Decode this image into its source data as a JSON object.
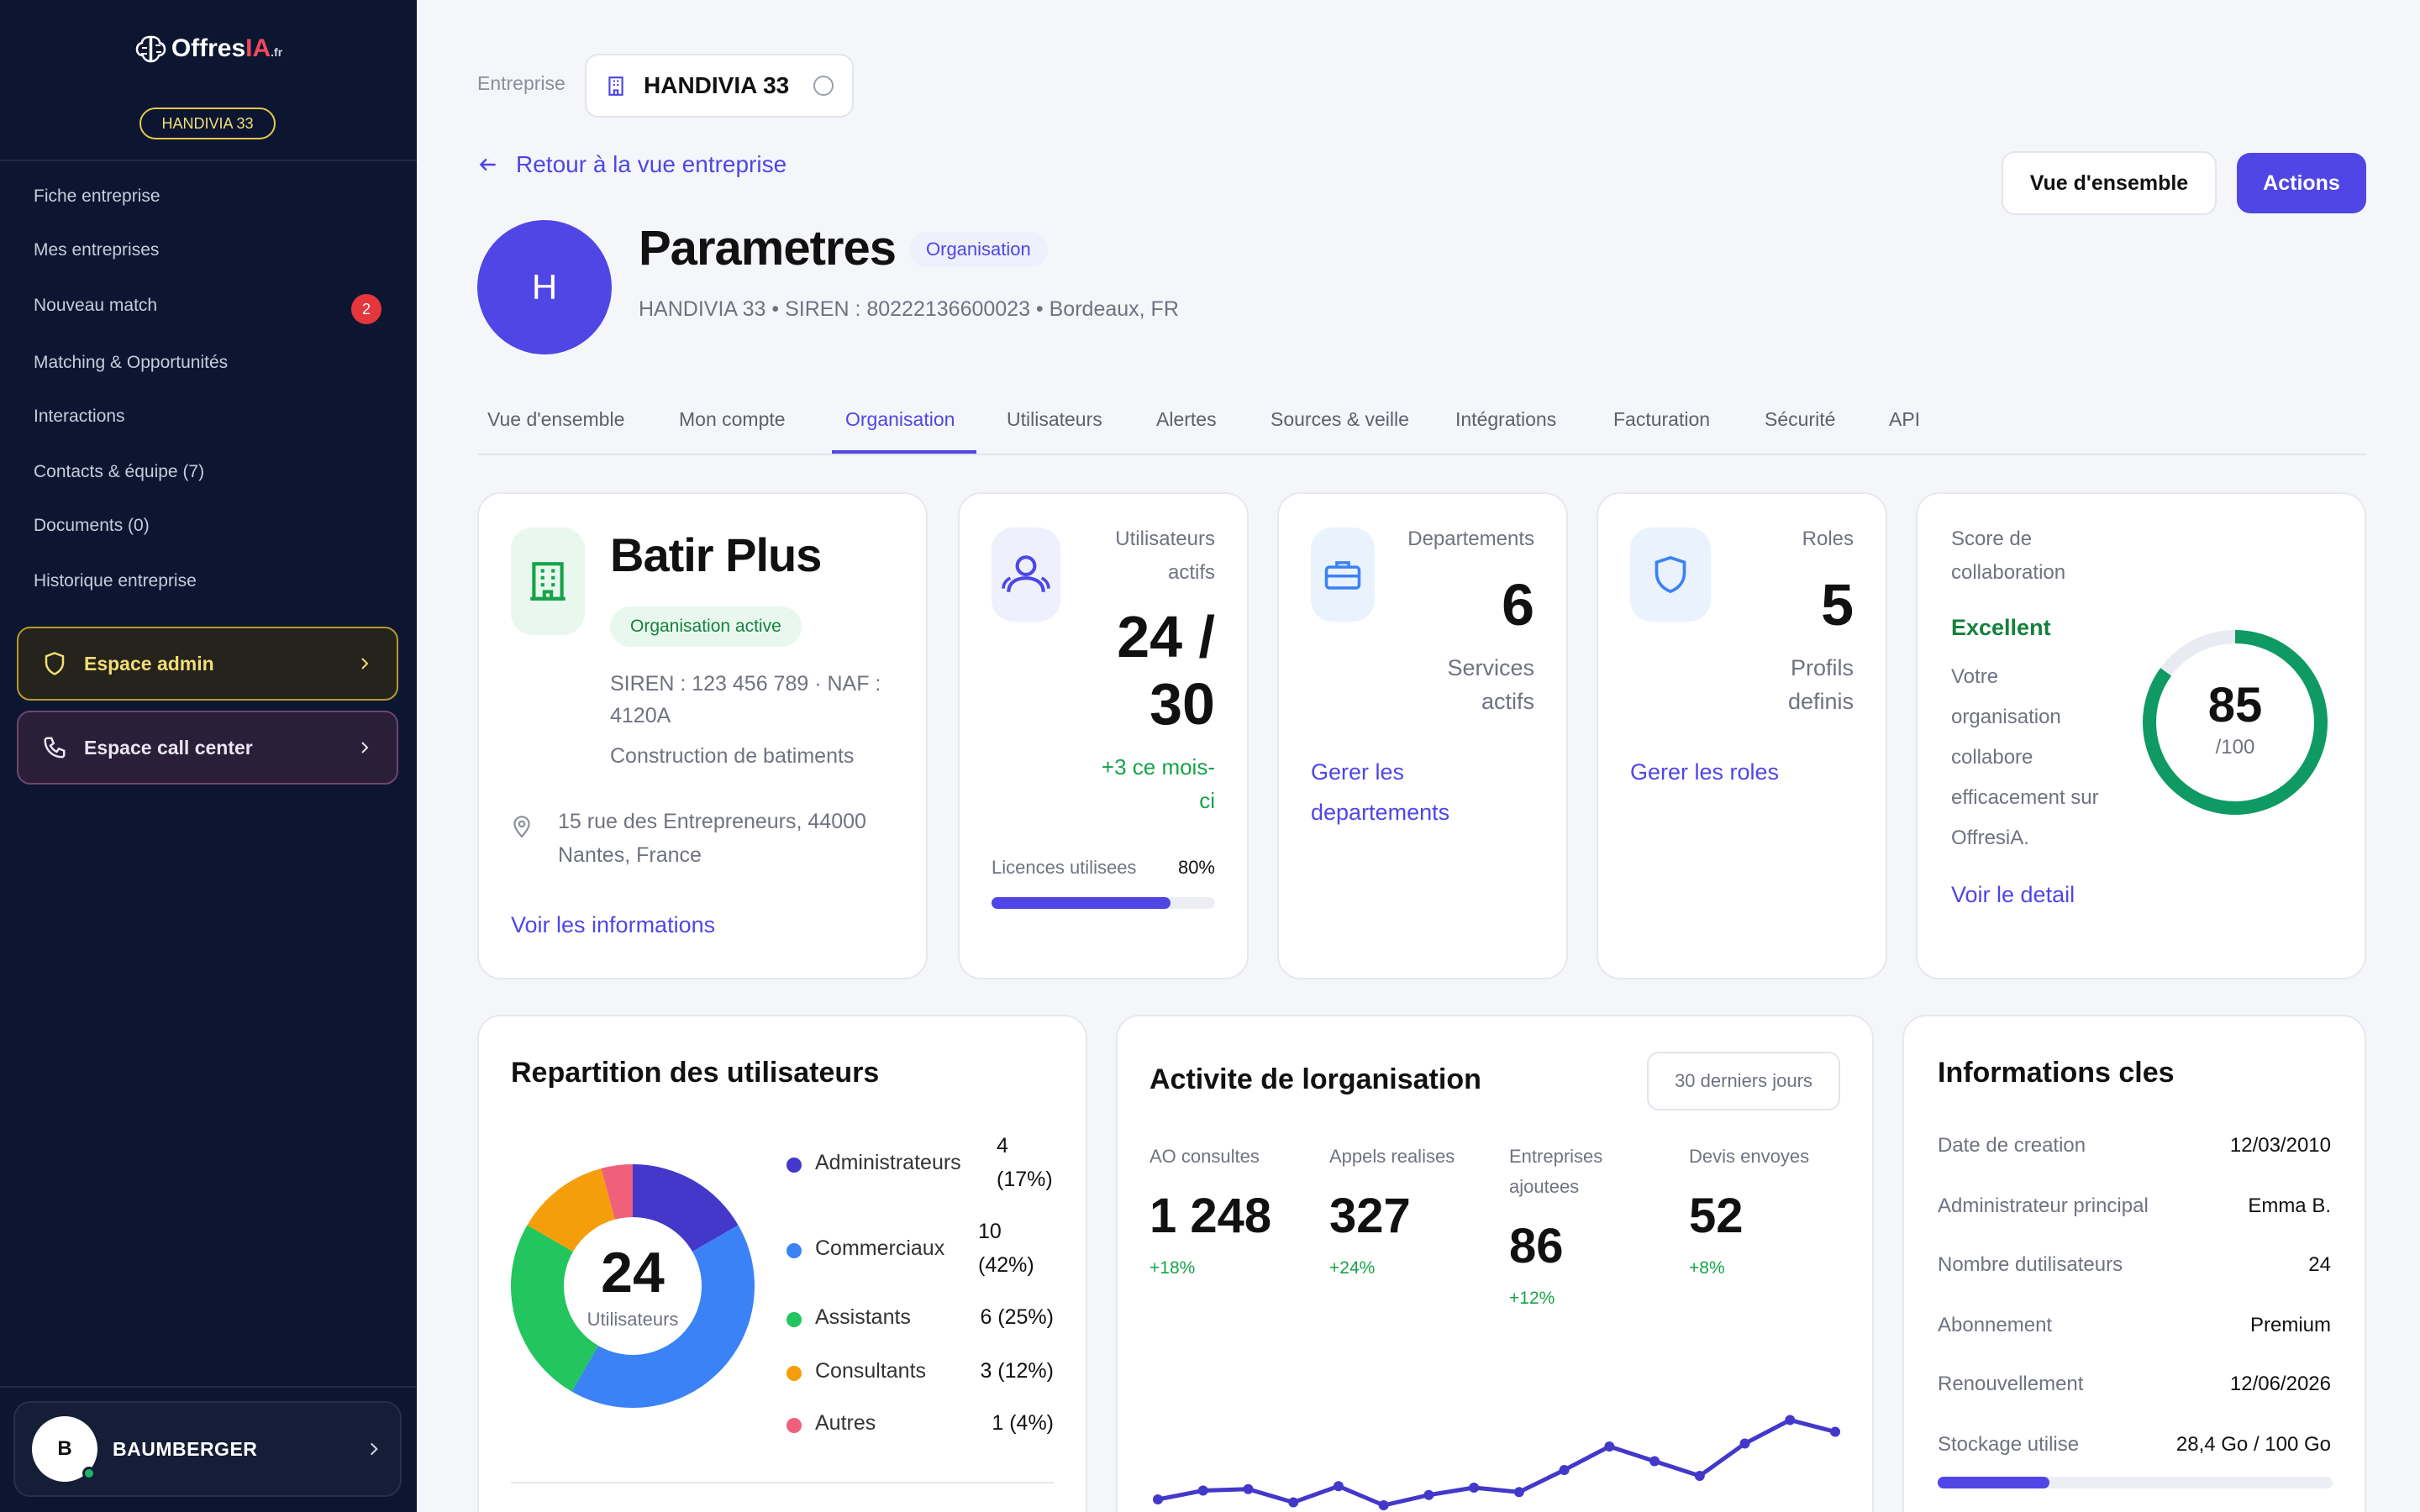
{
  "brand": {
    "name_main": "Offres",
    "name_accent": "IA",
    "name_suffix": ".fr"
  },
  "sidebar": {
    "company_badge": "HANDIVIA 33",
    "items": [
      {
        "label": "Fiche entreprise"
      },
      {
        "label": "Mes entreprises"
      },
      {
        "label": "Nouveau match",
        "badge": "2"
      },
      {
        "label": "Matching & Opportunités"
      },
      {
        "label": "Interactions"
      },
      {
        "label": "Contacts & équipe (7)"
      },
      {
        "label": "Documents (0)"
      },
      {
        "label": "Historique entreprise"
      }
    ],
    "admin_space": "Espace admin",
    "call_center_space": "Espace call center",
    "user": {
      "initial": "B",
      "name": "BAUMBERGER"
    }
  },
  "header": {
    "company_label": "Entreprise",
    "company_value": "HANDIVIA 33",
    "back_link": "Retour à la vue entreprise",
    "overview_button": "Vue d'ensemble",
    "actions_button": "Actions",
    "avatar_initial": "H",
    "title": "Parametres",
    "title_badge": "Organisation",
    "subtitle": "HANDIVIA 33 • SIREN : 80222136600023 • Bordeaux, FR"
  },
  "tabs": [
    {
      "label": "Vue d'ensemble"
    },
    {
      "label": "Mon compte"
    },
    {
      "label": "Organisation",
      "active": true
    },
    {
      "label": "Utilisateurs"
    },
    {
      "label": "Alertes"
    },
    {
      "label": "Sources & veille"
    },
    {
      "label": "Intégrations"
    },
    {
      "label": "Facturation"
    },
    {
      "label": "Sécurité"
    },
    {
      "label": "API"
    }
  ],
  "org_card": {
    "name": "Batir Plus",
    "status": "Organisation active",
    "siren_line1": "SIREN : 123 456 789 · NAF :",
    "siren_line2": "4120A",
    "activity": "Construction de batiments",
    "address_line1": "15 rue des Entrepreneurs, 44000",
    "address_line2": "Nantes, France",
    "link": "Voir les informations"
  },
  "users_card": {
    "label_line1": "Utilisateurs",
    "label_line2": "actifs",
    "value_line1": "24 /",
    "value_line2": "30",
    "delta_line1": "+3 ce mois-",
    "delta_line2": "ci",
    "licences_label": "Licences utilisees",
    "licences_pct": "80%",
    "licences_fraction": 0.8
  },
  "departments_card": {
    "label": "Departements",
    "value": "6",
    "sub_line1": "Services",
    "sub_line2": "actifs",
    "link_line1": "Gerer les",
    "link_line2": "departements"
  },
  "roles_card": {
    "label": "Roles",
    "value": "5",
    "sub_line1": "Profils",
    "sub_line2": "definis",
    "link": "Gerer les roles"
  },
  "score_card": {
    "label_line1": "Score de",
    "label_line2": "collaboration",
    "rating": "Excellent",
    "desc_lines": [
      "Votre",
      "organisation",
      "collabore",
      "efficacement sur",
      "OffresiA."
    ],
    "score": "85",
    "score_max": "/100",
    "score_fraction": 0.85,
    "link": "Voir le detail"
  },
  "distribution": {
    "title": "Repartition des utilisateurs",
    "total": "24",
    "total_label": "Utilisateurs",
    "segments": [
      {
        "name": "Administrateurs",
        "value_line1": "4",
        "value_line2": "(17%)",
        "count": 4,
        "color": "#4338ca"
      },
      {
        "name": "Commerciaux",
        "value_line1": "10",
        "value_line2": "(42%)",
        "count": 10,
        "color": "#3b82f6"
      },
      {
        "name": "Assistants",
        "value_line1": "6 (25%)",
        "value_line2": "",
        "count": 6,
        "color": "#22c55e"
      },
      {
        "name": "Consultants",
        "value_line1": "3 (12%)",
        "value_line2": "",
        "count": 3,
        "color": "#f59e0b"
      },
      {
        "name": "Autres",
        "value_line1": "1 (4%)",
        "value_line2": "",
        "count": 1,
        "color": "#f0607a"
      }
    ]
  },
  "activity": {
    "title": "Activite de lorganisation",
    "period": "30 derniers jours",
    "kpis": [
      {
        "label_line1": "AO consultes",
        "label_line2": "",
        "value": "1 248",
        "delta": "+18%"
      },
      {
        "label_line1": "Appels realises",
        "label_line2": "",
        "value": "327",
        "delta": "+24%"
      },
      {
        "label_line1": "Entreprises",
        "label_line2": "ajoutees",
        "value": "86",
        "delta": "+12%"
      },
      {
        "label_line1": "Devis envoyes",
        "label_line2": "",
        "value": "52",
        "delta": "+8%"
      }
    ],
    "line_color": "#4338ca",
    "line_values": [
      12,
      18,
      19,
      10,
      21,
      8,
      15,
      20,
      17,
      32,
      48,
      38,
      28,
      50,
      66,
      58
    ]
  },
  "key_info": {
    "title": "Informations cles",
    "rows": [
      {
        "label": "Date de creation",
        "value": "12/03/2010"
      },
      {
        "label": "Administrateur principal",
        "value": "Emma B."
      },
      {
        "label": "Nombre dutilisateurs",
        "value": "24"
      },
      {
        "label": "Abonnement",
        "value": "Premium"
      },
      {
        "label": "Renouvellement",
        "value": "12/06/2026"
      },
      {
        "label": "Stockage utilise",
        "value": "28,4 Go / 100 Go"
      }
    ],
    "storage_fraction": 0.284
  }
}
